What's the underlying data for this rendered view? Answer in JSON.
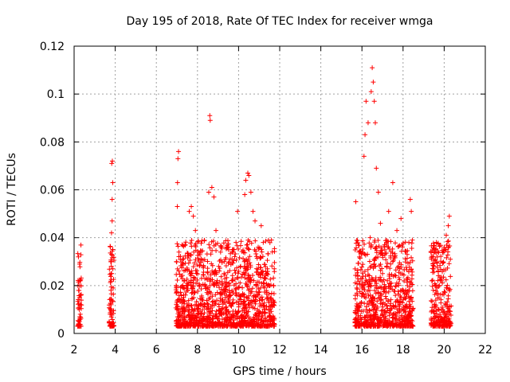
{
  "chart_data": {
    "type": "scatter",
    "title": "Day 195 of 2018, Rate Of TEC Index for receiver wmga",
    "xlabel": "GPS time / hours",
    "ylabel": "ROTI / TECUs",
    "xlim": [
      2,
      22
    ],
    "ylim": [
      0,
      0.12
    ],
    "x_ticks": [
      2,
      4,
      6,
      8,
      10,
      12,
      14,
      16,
      18,
      20,
      22
    ],
    "y_ticks": [
      0,
      0.02,
      0.04,
      0.06,
      0.08,
      0.1,
      0.12
    ],
    "x_tick_labels": [
      "2",
      "4",
      "6",
      "8",
      "10",
      "12",
      "14",
      "16",
      "18",
      "20",
      "22"
    ],
    "y_tick_labels": [
      "0",
      "0.02",
      "0.04",
      "0.06",
      "0.08",
      "0.1",
      "0.12"
    ],
    "grid": true,
    "marker": "+",
    "color": "#ff0000",
    "series": [
      {
        "name": "ROTI",
        "points": [
          [
            2.25,
            0.005
          ],
          [
            2.25,
            0.01
          ],
          [
            2.27,
            0.015
          ],
          [
            2.27,
            0.02
          ],
          [
            2.3,
            0.022
          ],
          [
            2.3,
            0.008
          ],
          [
            2.32,
            0.012
          ],
          [
            2.22,
            0.018
          ],
          [
            3.78,
            0.003
          ],
          [
            3.8,
            0.012
          ],
          [
            3.8,
            0.025
          ],
          [
            3.82,
            0.033
          ],
          [
            3.82,
            0.042
          ],
          [
            3.85,
            0.047
          ],
          [
            3.85,
            0.056
          ],
          [
            3.88,
            0.063
          ],
          [
            3.83,
            0.071
          ],
          [
            3.86,
            0.072
          ],
          [
            3.9,
            0.019
          ],
          [
            3.75,
            0.008
          ],
          [
            7.0,
            0.013
          ],
          [
            7.02,
            0.053
          ],
          [
            7.03,
            0.063
          ],
          [
            7.05,
            0.073
          ],
          [
            7.08,
            0.076
          ],
          [
            7.1,
            0.034
          ],
          [
            7.25,
            0.011
          ],
          [
            7.5,
            0.021
          ],
          [
            7.6,
            0.051
          ],
          [
            7.7,
            0.053
          ],
          [
            7.8,
            0.049
          ],
          [
            7.9,
            0.043
          ],
          [
            8.05,
            0.012
          ],
          [
            8.3,
            0.028
          ],
          [
            8.55,
            0.059
          ],
          [
            8.6,
            0.091
          ],
          [
            8.62,
            0.089
          ],
          [
            8.7,
            0.061
          ],
          [
            8.8,
            0.057
          ],
          [
            8.9,
            0.043
          ],
          [
            9.1,
            0.017
          ],
          [
            9.3,
            0.03
          ],
          [
            9.5,
            0.014
          ],
          [
            9.7,
            0.035
          ],
          [
            9.95,
            0.051
          ],
          [
            10.1,
            0.028
          ],
          [
            10.3,
            0.058
          ],
          [
            10.35,
            0.064
          ],
          [
            10.45,
            0.067
          ],
          [
            10.5,
            0.066
          ],
          [
            10.6,
            0.059
          ],
          [
            10.7,
            0.051
          ],
          [
            10.8,
            0.047
          ],
          [
            10.9,
            0.02
          ],
          [
            11.1,
            0.045
          ],
          [
            11.2,
            0.038
          ],
          [
            11.4,
            0.027
          ],
          [
            11.6,
            0.039
          ],
          [
            11.7,
            0.012
          ],
          [
            15.7,
            0.055
          ],
          [
            15.85,
            0.034
          ],
          [
            16.0,
            0.019
          ],
          [
            16.1,
            0.074
          ],
          [
            16.15,
            0.083
          ],
          [
            16.2,
            0.097
          ],
          [
            16.3,
            0.088
          ],
          [
            16.4,
            0.04
          ],
          [
            16.45,
            0.101
          ],
          [
            16.5,
            0.111
          ],
          [
            16.55,
            0.105
          ],
          [
            16.6,
            0.097
          ],
          [
            16.65,
            0.088
          ],
          [
            16.7,
            0.069
          ],
          [
            16.8,
            0.059
          ],
          [
            16.9,
            0.046
          ],
          [
            17.0,
            0.025
          ],
          [
            17.1,
            0.037
          ],
          [
            17.3,
            0.051
          ],
          [
            17.4,
            0.029
          ],
          [
            17.5,
            0.063
          ],
          [
            17.7,
            0.043
          ],
          [
            17.9,
            0.048
          ],
          [
            18.05,
            0.015
          ],
          [
            18.2,
            0.033
          ],
          [
            18.35,
            0.056
          ],
          [
            18.4,
            0.051
          ],
          [
            18.45,
            0.039
          ],
          [
            19.4,
            0.022
          ],
          [
            19.5,
            0.028
          ],
          [
            19.6,
            0.011
          ],
          [
            20.0,
            0.036
          ],
          [
            20.1,
            0.041
          ],
          [
            20.2,
            0.045
          ],
          [
            20.25,
            0.049
          ],
          [
            20.3,
            0.031
          ],
          [
            20.05,
            0.008
          ]
        ]
      }
    ]
  }
}
